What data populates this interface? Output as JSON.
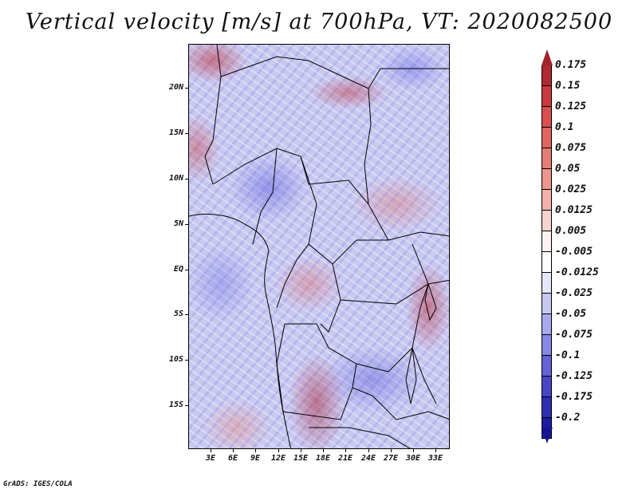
{
  "title": "Vertical velocity [m/s] at 700hPa, VT: 2020082500",
  "lat_labels": [
    "20N",
    "15N",
    "10N",
    "5N",
    "EQ",
    "5S",
    "10S",
    "15S"
  ],
  "lon_labels": [
    "3E",
    "6E",
    "9E",
    "12E",
    "15E",
    "18E",
    "21E",
    "24E",
    "27E",
    "30E",
    "33E"
  ],
  "colorbar": {
    "levels": [
      "0.175",
      "0.15",
      "0.125",
      "0.1",
      "0.075",
      "0.05",
      "0.025",
      "0.0125",
      "0.005",
      "-0.005",
      "-0.0125",
      "-0.025",
      "-0.05",
      "-0.075",
      "-0.1",
      "-0.125",
      "-0.175",
      "-0.2"
    ],
    "colors": [
      "#b22a31",
      "#c93a3f",
      "#d9504f",
      "#e0655f",
      "#e67d75",
      "#ec968d",
      "#f2b2aa",
      "#f8d3cd",
      "#fdf2f0",
      "#ffffff",
      "#e6e6fa",
      "#c8c8f4",
      "#a9a9ee",
      "#8787e4",
      "#6464d6",
      "#4646c6",
      "#2f2fb4",
      "#1c1ca2"
    ],
    "top_color": "#a0232a",
    "bottom_color": "#14148f"
  },
  "credit": "GrADS: IGES/COLA"
}
